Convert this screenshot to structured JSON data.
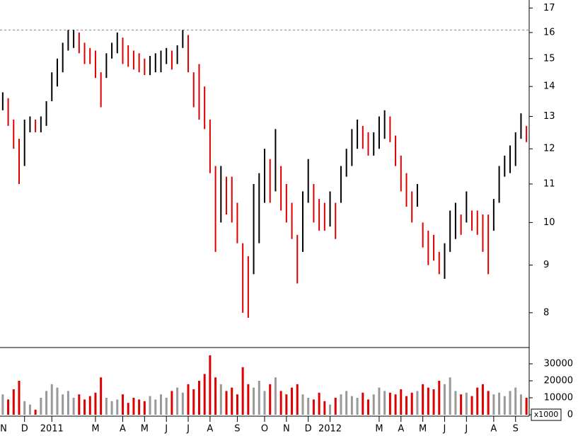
{
  "chart_data": {
    "type": "ohlc",
    "categories": [
      null,
      null,
      null,
      null,
      "D",
      null,
      null,
      null,
      null,
      "2011",
      null,
      null,
      null,
      null,
      null,
      null,
      null,
      "M",
      null,
      null,
      null,
      null,
      "A",
      null,
      null,
      null,
      "M",
      null,
      null,
      null,
      "J",
      null,
      null,
      null,
      "J",
      null,
      null,
      null,
      "A",
      null,
      null,
      null,
      null,
      "S",
      null,
      null,
      null,
      null,
      "O",
      null,
      null,
      null,
      "N",
      null,
      null,
      null,
      "D",
      null,
      null,
      null,
      "2012",
      null,
      null,
      null,
      null,
      null,
      null,
      null,
      null,
      "M",
      null,
      null,
      null,
      "A",
      null,
      null,
      null,
      "M",
      null,
      null,
      null,
      "J",
      null,
      null,
      null,
      "J",
      null,
      null,
      null,
      null,
      "A",
      null,
      null,
      null,
      "S",
      null,
      null
    ],
    "first_label": "N",
    "high": [
      13.8,
      13.6,
      12.9,
      12.3,
      12.9,
      13.0,
      12.9,
      13.0,
      13.5,
      14.5,
      15.0,
      15.6,
      16.1,
      16.1,
      16.0,
      15.6,
      15.4,
      15.3,
      14.5,
      15.2,
      15.6,
      16.0,
      15.8,
      15.5,
      15.3,
      15.2,
      15.0,
      15.1,
      15.2,
      15.3,
      15.4,
      15.3,
      15.5,
      16.1,
      15.9,
      14.5,
      14.8,
      14.0,
      12.9,
      11.5,
      11.5,
      11.2,
      11.2,
      10.5,
      9.5,
      9.2,
      11.0,
      11.3,
      12.0,
      11.7,
      12.6,
      11.5,
      11.0,
      10.5,
      9.7,
      10.8,
      11.7,
      11.0,
      10.6,
      10.5,
      10.8,
      10.5,
      11.5,
      12.0,
      12.6,
      12.9,
      12.7,
      12.5,
      12.5,
      13.0,
      13.2,
      13.0,
      12.4,
      11.8,
      11.3,
      10.8,
      11.0,
      10.0,
      9.8,
      9.7,
      9.3,
      9.5,
      10.3,
      10.5,
      10.2,
      10.8,
      10.3,
      10.3,
      10.2,
      10.2,
      10.6,
      11.5,
      11.8,
      12.1,
      12.5,
      13.1,
      12.7
    ],
    "low": [
      13.2,
      12.7,
      12.0,
      11.0,
      11.5,
      12.5,
      12.5,
      12.5,
      12.7,
      13.5,
      14.0,
      14.5,
      15.3,
      15.4,
      15.2,
      14.8,
      14.8,
      14.3,
      13.3,
      14.3,
      15.0,
      15.2,
      14.8,
      14.7,
      14.6,
      14.5,
      14.4,
      14.4,
      14.5,
      14.5,
      14.8,
      14.6,
      14.8,
      15.4,
      14.5,
      13.3,
      12.9,
      12.6,
      11.3,
      9.3,
      10.0,
      10.2,
      10.0,
      9.5,
      8.0,
      7.9,
      8.8,
      9.5,
      10.5,
      10.5,
      10.8,
      10.3,
      10.0,
      9.6,
      8.6,
      9.3,
      10.5,
      10.0,
      9.8,
      9.8,
      9.9,
      9.6,
      10.5,
      11.2,
      11.5,
      12.0,
      12.0,
      11.8,
      11.8,
      12.0,
      12.3,
      12.2,
      11.5,
      10.8,
      10.4,
      10.0,
      10.4,
      9.4,
      9.0,
      9.1,
      8.8,
      8.7,
      9.3,
      9.6,
      9.7,
      10.0,
      9.8,
      9.7,
      9.3,
      8.8,
      9.8,
      10.5,
      11.2,
      11.3,
      11.5,
      12.3,
      12.2
    ],
    "volume": [
      12000,
      9000,
      15000,
      20000,
      8000,
      6000,
      3000,
      10000,
      14000,
      18000,
      16000,
      12000,
      14000,
      10000,
      12000,
      9000,
      11000,
      13000,
      22000,
      10000,
      8000,
      9000,
      12000,
      7000,
      10000,
      9000,
      8000,
      11000,
      9000,
      12000,
      10000,
      14000,
      16000,
      13000,
      18000,
      15000,
      20000,
      24000,
      35000,
      22000,
      18000,
      14000,
      16000,
      12000,
      28000,
      18000,
      16000,
      20000,
      14000,
      18000,
      22000,
      14000,
      12000,
      16000,
      18000,
      12000,
      10000,
      9000,
      13000,
      8000,
      6000,
      10000,
      12000,
      14000,
      11000,
      10000,
      13000,
      9000,
      12000,
      16000,
      14000,
      13000,
      12000,
      15000,
      11000,
      13000,
      14000,
      18000,
      16000,
      15000,
      20000,
      18000,
      22000,
      14000,
      12000,
      13000,
      11000,
      16000,
      18000,
      14000,
      12000,
      13000,
      11000,
      14000,
      16000,
      12000,
      10000
    ],
    "ylim": [
      7.34,
      17.34
    ],
    "log_scale": true,
    "yticks": [
      8,
      9,
      10,
      11,
      12,
      13,
      14,
      15,
      16,
      17
    ],
    "reference_line": 16.1,
    "volume_ylim": [
      0,
      38750
    ],
    "volume_yticks": [
      0,
      10000,
      20000,
      30000
    ],
    "volume_unit": "x1000",
    "up_color": "#000000",
    "down_color": "#dd0000",
    "volume_up_color": "#999999"
  }
}
